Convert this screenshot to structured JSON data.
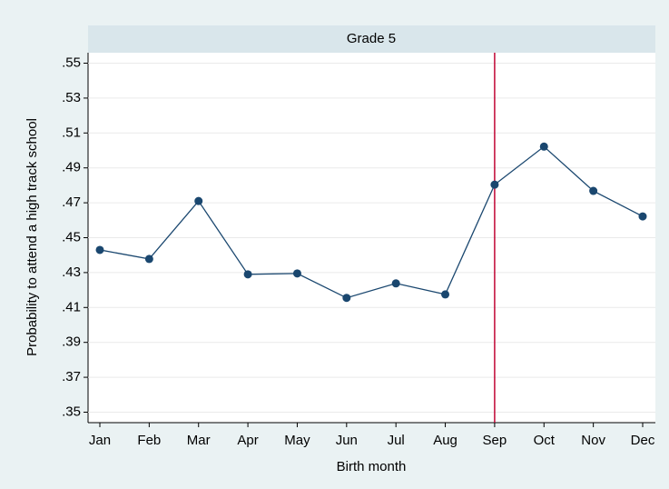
{
  "chart_data": {
    "type": "line",
    "panel_title": "Grade 5",
    "x_label": "Birth month",
    "y_label": "Probability to attend a high track school",
    "categories": [
      "Jan",
      "Feb",
      "Mar",
      "Apr",
      "May",
      "Jun",
      "Jul",
      "Aug",
      "Sep",
      "Oct",
      "Nov",
      "Dec"
    ],
    "series": [
      {
        "color": "#1a476f",
        "values": [
          0.443,
          0.4378,
          0.471,
          0.429,
          0.4295,
          0.4155,
          0.4238,
          0.4175,
          0.4804,
          0.5022,
          0.4768,
          0.4622
        ]
      }
    ],
    "ylim": [
      0.344,
      0.556
    ],
    "yticks": [
      {
        "value": 0.35,
        "label": ".35"
      },
      {
        "value": 0.37,
        "label": ".37"
      },
      {
        "value": 0.39,
        "label": ".39"
      },
      {
        "value": 0.41,
        "label": ".41"
      },
      {
        "value": 0.43,
        "label": ".43"
      },
      {
        "value": 0.45,
        "label": ".45"
      },
      {
        "value": 0.47,
        "label": ".47"
      },
      {
        "value": 0.49,
        "label": ".49"
      },
      {
        "value": 0.51,
        "label": ".51"
      },
      {
        "value": 0.53,
        "label": ".53"
      },
      {
        "value": 0.55,
        "label": ".55"
      }
    ],
    "grid": true,
    "vline_category": "Sep",
    "vline_color": "#c10534"
  }
}
